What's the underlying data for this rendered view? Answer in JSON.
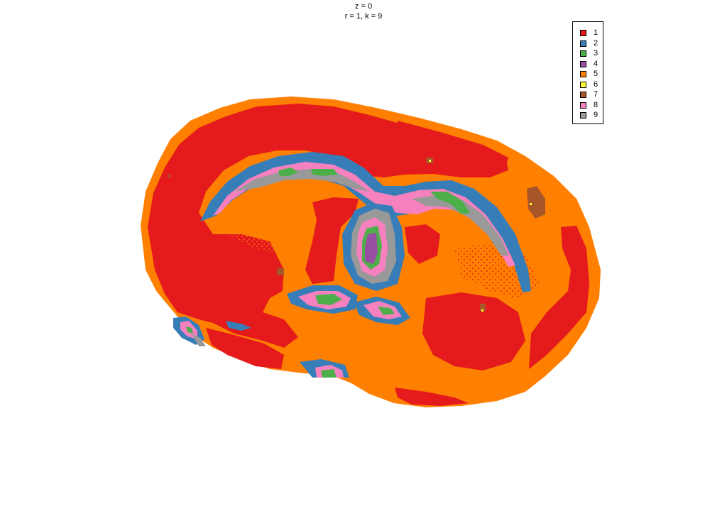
{
  "title": {
    "line1": "z = 0",
    "line2": "r = 1, k = 9"
  },
  "legend": [
    {
      "label": "1",
      "color": "#e41a1c"
    },
    {
      "label": "2",
      "color": "#377eb8"
    },
    {
      "label": "3",
      "color": "#4daf4a"
    },
    {
      "label": "4",
      "color": "#984ea3"
    },
    {
      "label": "5",
      "color": "#ff7f00"
    },
    {
      "label": "6",
      "color": "#ffff33"
    },
    {
      "label": "7",
      "color": "#a65628"
    },
    {
      "label": "8",
      "color": "#f781bf"
    },
    {
      "label": "9",
      "color": "#999999"
    }
  ]
}
